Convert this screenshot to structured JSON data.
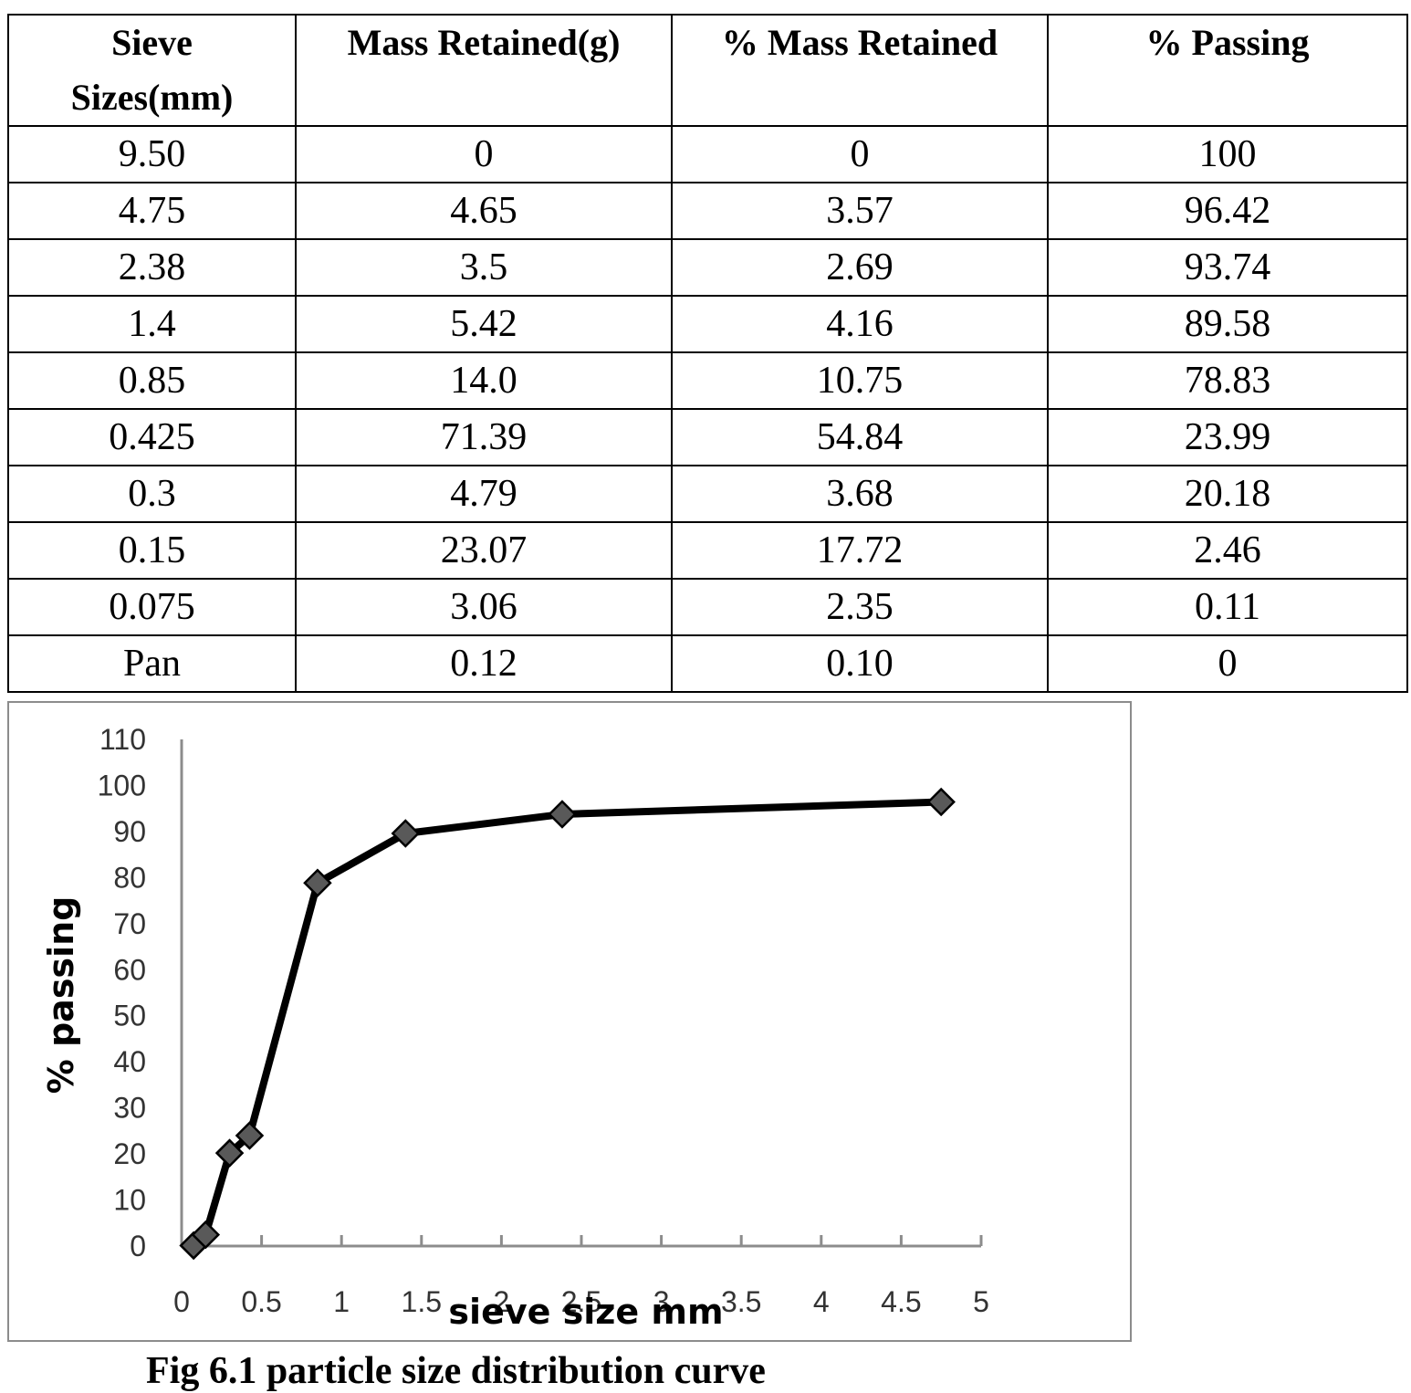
{
  "table": {
    "headers": [
      "Sieve Sizes(mm)",
      "Mass Retained(g)",
      "% Mass Retained",
      "% Passing"
    ],
    "rows": [
      [
        "9.50",
        "0",
        "0",
        "100"
      ],
      [
        "4.75",
        "4.65",
        "3.57",
        "96.42"
      ],
      [
        "2.38",
        "3.5",
        "2.69",
        "93.74"
      ],
      [
        "1.4",
        "5.42",
        "4.16",
        "89.58"
      ],
      [
        "0.85",
        "14.0",
        "10.75",
        "78.83"
      ],
      [
        "0.425",
        "71.39",
        "54.84",
        "23.99"
      ],
      [
        "0.3",
        "4.79",
        "3.68",
        "20.18"
      ],
      [
        "0.15",
        "23.07",
        "17.72",
        "2.46"
      ],
      [
        "0.075",
        "3.06",
        "2.35",
        "0.11"
      ],
      [
        "Pan",
        "0.12",
        "0.10",
        "0"
      ]
    ]
  },
  "chart_data": {
    "type": "line",
    "title": "",
    "xlabel": "sieve size mm",
    "ylabel": "% passing",
    "xlim": [
      0,
      5
    ],
    "ylim": [
      0,
      110
    ],
    "x_ticks": [
      0,
      0.5,
      1,
      1.5,
      2,
      2.5,
      3,
      3.5,
      4,
      4.5,
      5
    ],
    "x_tick_labels": [
      "0",
      "0.5",
      "1",
      "1.5",
      "2",
      "2.5",
      "3",
      "3.5",
      "4",
      "4.5",
      "5"
    ],
    "y_ticks": [
      0,
      10,
      20,
      30,
      40,
      50,
      60,
      70,
      80,
      90,
      100,
      110
    ],
    "y_tick_labels": [
      "0",
      "10",
      "20",
      "30",
      "40",
      "50",
      "60",
      "70",
      "80",
      "90",
      "100",
      "110"
    ],
    "grid": false,
    "legend": "none",
    "marker": "diamond",
    "line_color": "#000000",
    "marker_color": "#595959",
    "series": [
      {
        "x": [
          0.075,
          0.15,
          0.3,
          0.425,
          0.85,
          1.4,
          2.38,
          4.75
        ],
        "y": [
          0.11,
          2.46,
          20.18,
          23.99,
          78.83,
          89.58,
          93.74,
          96.42
        ]
      }
    ]
  },
  "caption": "Fig 6.1 particle size distribution curve"
}
